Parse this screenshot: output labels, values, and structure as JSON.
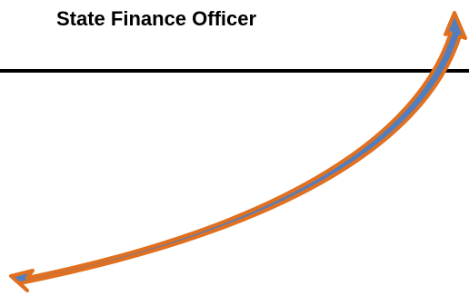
{
  "title": "State Finance Officer",
  "colors": {
    "rule": "#000000",
    "arrow_outline": "#e07020",
    "arrow_fill": "#4f7fc0"
  },
  "arrow": {
    "style": "curved double-headed arrow"
  }
}
